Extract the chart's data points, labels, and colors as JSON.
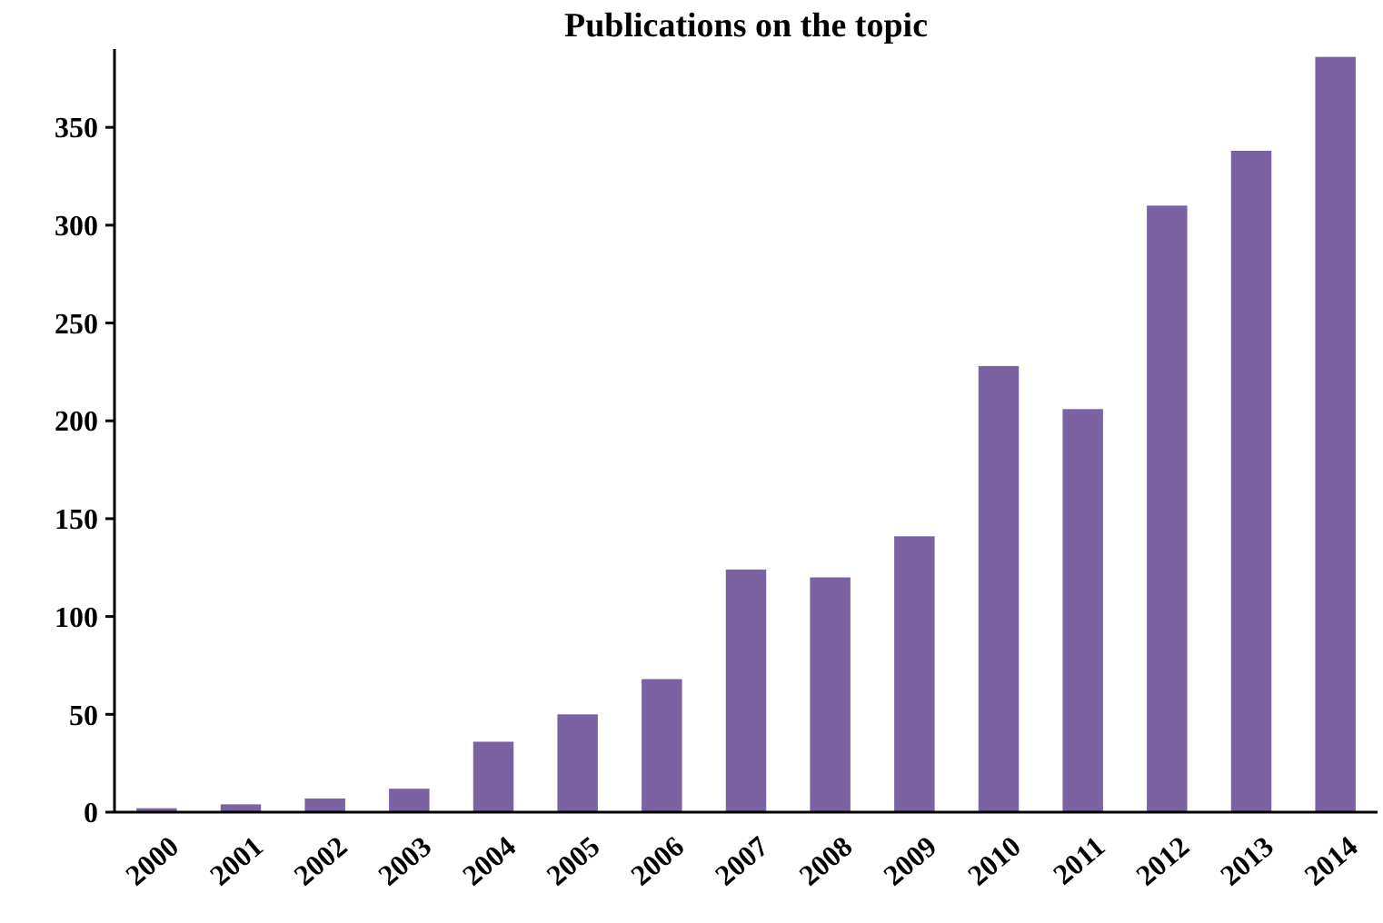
{
  "chart_data": {
    "type": "bar",
    "title": "Publications on the topic",
    "categories": [
      "2000",
      "2001",
      "2002",
      "2003",
      "2004",
      "2005",
      "2006",
      "2007",
      "2008",
      "2009",
      "2010",
      "2011",
      "2012",
      "2013",
      "2014"
    ],
    "values": [
      2,
      4,
      7,
      12,
      36,
      50,
      68,
      124,
      120,
      141,
      228,
      206,
      310,
      338,
      386
    ],
    "color": "#7b62a3",
    "ylim": [
      0,
      390
    ],
    "yticks": [
      0,
      50,
      100,
      150,
      200,
      250,
      300,
      350
    ],
    "grid": false
  }
}
